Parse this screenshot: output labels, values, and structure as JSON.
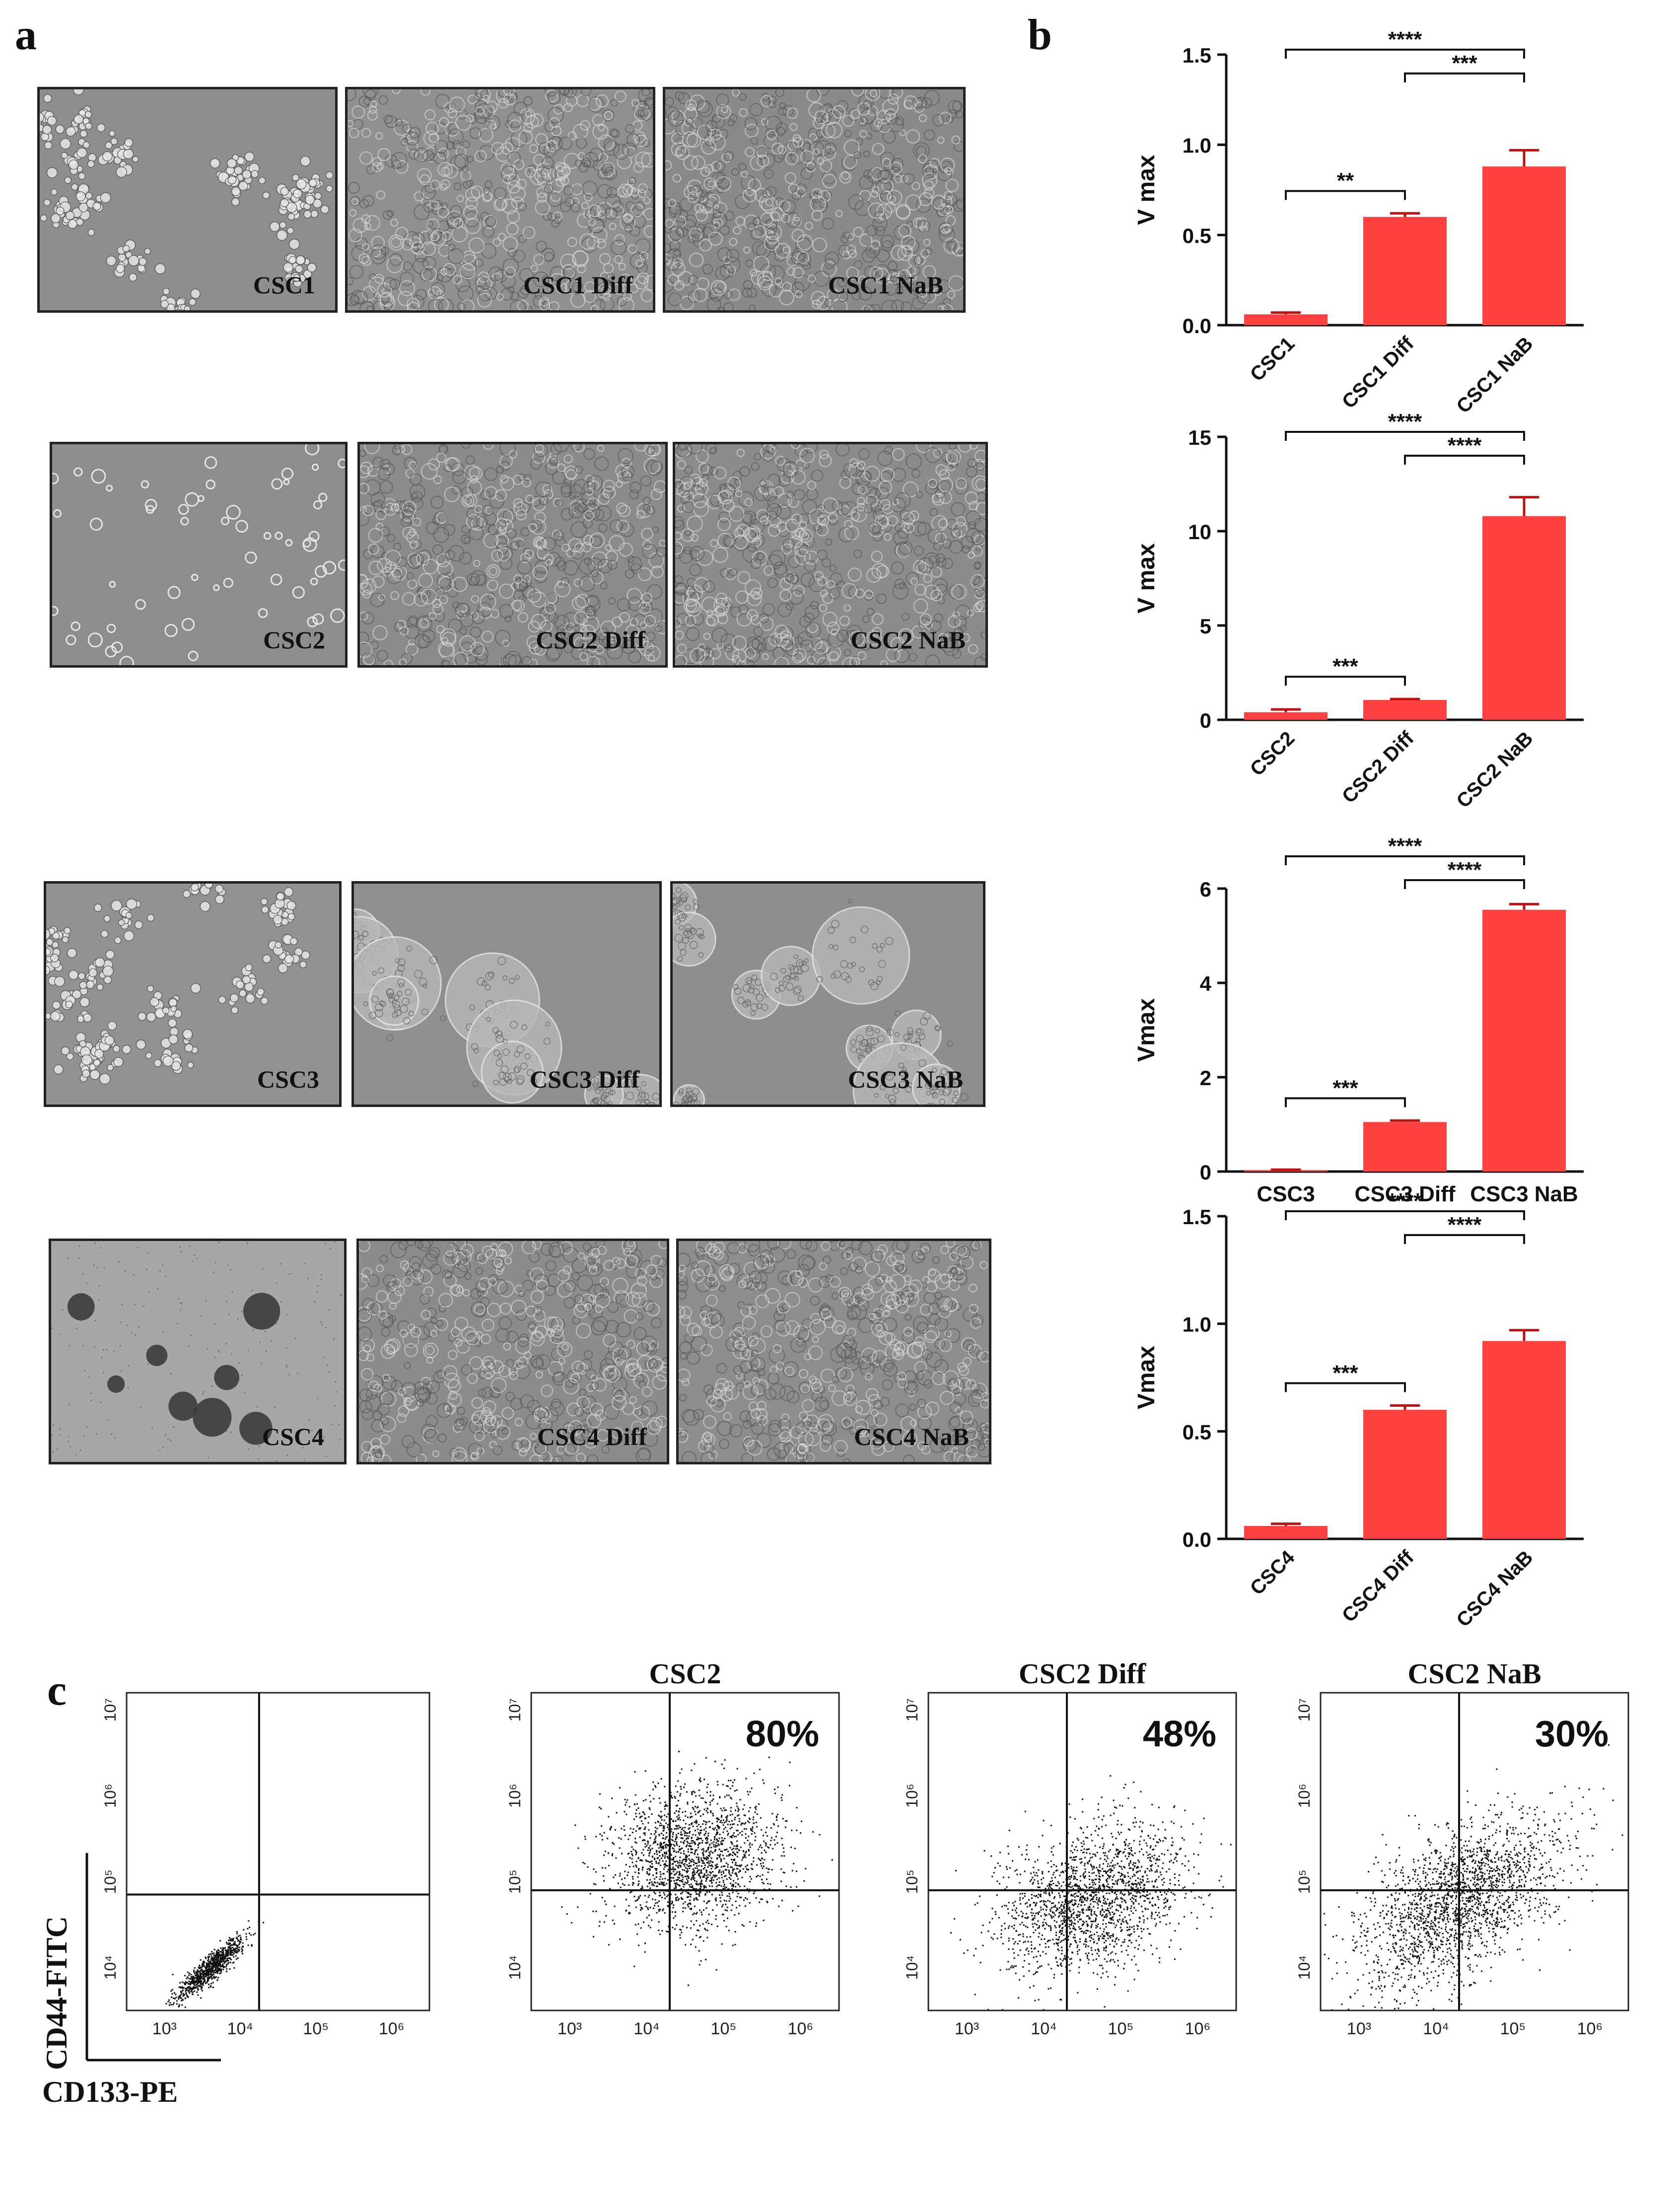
{
  "panels": {
    "a": "a",
    "b": "b",
    "c": "c"
  },
  "micrographs": [
    {
      "label": "CSC1",
      "tone": "#8e8e8e",
      "style": "clusters"
    },
    {
      "label": "CSC1 Diff",
      "tone": "#909090",
      "style": "dense"
    },
    {
      "label": "CSC1 NaB",
      "tone": "#8a8a8a",
      "style": "dense"
    },
    {
      "label": "CSC2",
      "tone": "#8d8d8d",
      "style": "sparse"
    },
    {
      "label": "CSC2 Diff",
      "tone": "#8b8b8b",
      "style": "dense"
    },
    {
      "label": "CSC2 NaB",
      "tone": "#8c8c8c",
      "style": "dense"
    },
    {
      "label": "CSC3",
      "tone": "#929292",
      "style": "clusters"
    },
    {
      "label": "CSC3 Diff",
      "tone": "#8f8f8f",
      "style": "spheres"
    },
    {
      "label": "CSC3 NaB",
      "tone": "#8e8e8e",
      "style": "spheres"
    },
    {
      "label": "CSC4",
      "tone": "#a7a7a7",
      "style": "dark-spheres"
    },
    {
      "label": "CSC4 Diff",
      "tone": "#8c8c8c",
      "style": "dense"
    },
    {
      "label": "CSC4 NaB",
      "tone": "#8d8d8d",
      "style": "dense"
    }
  ],
  "chart_data": [
    {
      "type": "bar",
      "categories": [
        "CSC1",
        "CSC1 Diff",
        "CSC1 NaB"
      ],
      "values": [
        0.06,
        0.6,
        0.88
      ],
      "errors": [
        0.01,
        0.02,
        0.09
      ],
      "ylabel": "V max",
      "ylim": [
        0,
        1.5
      ],
      "yticks": [
        "0.0",
        "0.5",
        "1.0",
        "1.5"
      ],
      "tick_style": "rotated",
      "color": "#ff4040",
      "significance": [
        {
          "from": 0,
          "to": 2,
          "label": "****"
        },
        {
          "from": 1,
          "to": 2,
          "label": "***"
        },
        {
          "from": 0,
          "to": 1,
          "label": "**"
        }
      ]
    },
    {
      "type": "bar",
      "categories": [
        "CSC2",
        "CSC2 Diff",
        "CSC2 NaB"
      ],
      "values": [
        0.4,
        1.05,
        10.8
      ],
      "errors": [
        0.15,
        0.05,
        1.0
      ],
      "ylabel": "V max",
      "ylim": [
        0,
        15
      ],
      "yticks": [
        "0",
        "5",
        "10",
        "15"
      ],
      "tick_style": "rotated",
      "color": "#ff4040",
      "significance": [
        {
          "from": 0,
          "to": 2,
          "label": "****"
        },
        {
          "from": 1,
          "to": 2,
          "label": "****"
        },
        {
          "from": 0,
          "to": 1,
          "label": "***"
        }
      ]
    },
    {
      "type": "bar",
      "categories": [
        "CSC3",
        "CSC3 Diff",
        "CSC3 NaB"
      ],
      "values": [
        0.03,
        1.05,
        5.55
      ],
      "errors": [
        0.01,
        0.03,
        0.12
      ],
      "ylabel": "Vmax",
      "ylim": [
        0,
        6
      ],
      "yticks": [
        "0",
        "2",
        "4",
        "6"
      ],
      "tick_style": "horizontal",
      "color": "#ff4040",
      "significance": [
        {
          "from": 0,
          "to": 2,
          "label": "****"
        },
        {
          "from": 1,
          "to": 2,
          "label": "****"
        },
        {
          "from": 0,
          "to": 1,
          "label": "***"
        }
      ]
    },
    {
      "type": "bar",
      "categories": [
        "CSC4",
        "CSC4 Diff",
        "CSC4 NaB"
      ],
      "values": [
        0.06,
        0.6,
        0.92
      ],
      "errors": [
        0.01,
        0.02,
        0.05
      ],
      "ylabel": "Vmax",
      "ylim": [
        0,
        1.5
      ],
      "yticks": [
        "0.0",
        "0.5",
        "1.0",
        "1.5"
      ],
      "tick_style": "rotated",
      "color": "#ff4040",
      "significance": [
        {
          "from": 0,
          "to": 2,
          "label": "****"
        },
        {
          "from": 1,
          "to": 2,
          "label": "****"
        },
        {
          "from": 0,
          "to": 1,
          "label": "***"
        }
      ]
    },
    {
      "type": "scatter",
      "title": "",
      "percent": "",
      "xlabel": "CD133-PE",
      "ylabel": "CD44-FITC",
      "xticks": [
        "10³",
        "10⁴",
        "10⁵",
        "10⁶"
      ],
      "yticks": [
        "10⁴",
        "10⁵",
        "10⁶",
        "10⁷"
      ],
      "cloud": {
        "cx": 3.6,
        "cy": 4.0,
        "spread_x": 0.22,
        "spread_y": 0.18,
        "corr": 0.9,
        "n": 900
      }
    },
    {
      "type": "scatter",
      "title": "CSC2",
      "percent": "80%",
      "xticks": [
        "10³",
        "10⁴",
        "10⁵",
        "10⁶"
      ],
      "yticks": [
        "10⁴",
        "10⁵",
        "10⁶",
        "10⁷"
      ],
      "cloud": {
        "cx": 4.6,
        "cy": 5.3,
        "spread_x": 0.55,
        "spread_y": 0.42,
        "corr": 0.1,
        "n": 1800
      }
    },
    {
      "type": "scatter",
      "title": "CSC2 Diff",
      "percent": "48%",
      "xticks": [
        "10³",
        "10⁴",
        "10⁵",
        "10⁶"
      ],
      "yticks": [
        "10⁴",
        "10⁵",
        "10⁶",
        "10⁷"
      ],
      "cloud": {
        "cx": 4.6,
        "cy": 4.8,
        "spread_x": 0.6,
        "spread_y": 0.45,
        "corr": 0.3,
        "n": 1800
      }
    },
    {
      "type": "scatter",
      "title": "CSC2 NaB",
      "percent": "30%",
      "xticks": [
        "10³",
        "10⁴",
        "10⁵",
        "10⁶"
      ],
      "yticks": [
        "10⁴",
        "10⁵",
        "10⁶",
        "10⁷"
      ],
      "cloud": {
        "cx": 4.3,
        "cy": 4.8,
        "spread_x": 0.65,
        "spread_y": 0.5,
        "corr": 0.55,
        "n": 2000
      }
    }
  ]
}
